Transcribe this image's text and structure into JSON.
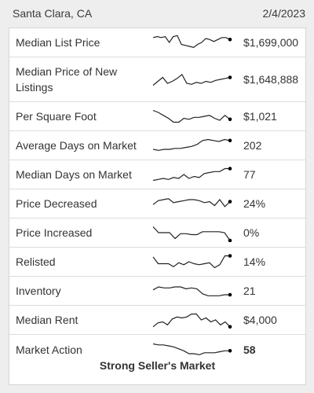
{
  "header": {
    "location": "Santa Clara, CA",
    "date": "2/4/2023"
  },
  "rows": [
    {
      "label": "Median List Price",
      "value": "$1,699,000",
      "spark": [
        3,
        2,
        3,
        2,
        8,
        2,
        1,
        10,
        11,
        12,
        13,
        10,
        8,
        4,
        5,
        7,
        5,
        3,
        3,
        5
      ]
    },
    {
      "label": "Median Price of New Listings",
      "value": "$1,648,888",
      "spark": [
        14,
        10,
        6,
        12,
        10,
        7,
        3,
        12,
        13,
        11,
        12,
        10,
        11,
        9,
        8,
        7,
        6
      ]
    },
    {
      "label": "Per Square Foot",
      "value": "$1,021",
      "spark": [
        2,
        4,
        7,
        10,
        14,
        14,
        10,
        11,
        9,
        9,
        8,
        7,
        10,
        12,
        7,
        11
      ]
    },
    {
      "label": "Average Days on Market",
      "value": "202",
      "spark": [
        12,
        13,
        12,
        12,
        11,
        11,
        10,
        9,
        7,
        3,
        2,
        3,
        4,
        2,
        3
      ]
    },
    {
      "label": "Median Days on Market",
      "value": "77",
      "spark": [
        14,
        13,
        12,
        13,
        11,
        12,
        8,
        12,
        10,
        11,
        7,
        6,
        5,
        5,
        2,
        2
      ]
    },
    {
      "label": "Price Decreased",
      "value": "24%",
      "spark": [
        9,
        5,
        4,
        3,
        7,
        6,
        5,
        4,
        4,
        5,
        7,
        6,
        10,
        4,
        11,
        6
      ]
    },
    {
      "label": "Price Increased",
      "value": "0%",
      "spark": [
        2,
        8,
        8,
        8,
        14,
        9,
        9,
        10,
        10,
        7,
        7,
        7,
        7,
        8,
        16
      ]
    },
    {
      "label": "Relisted",
      "value": "14%",
      "spark": [
        3,
        10,
        10,
        10,
        13,
        9,
        11,
        8,
        10,
        11,
        10,
        9,
        14,
        11,
        2,
        2
      ]
    },
    {
      "label": "Inventory",
      "value": "21",
      "spark": [
        7,
        4,
        5,
        5,
        4,
        4,
        6,
        5,
        6,
        11,
        13,
        13,
        13,
        12,
        12
      ]
    },
    {
      "label": "Median Rent",
      "value": "$4,000",
      "spark": [
        15,
        11,
        10,
        13,
        7,
        5,
        6,
        5,
        2,
        2,
        8,
        6,
        10,
        8,
        13,
        10,
        15
      ]
    },
    {
      "label": "Market Action",
      "value": "58",
      "spark": [
        2,
        3,
        3,
        4,
        5,
        7,
        9,
        12,
        12,
        13,
        11,
        11,
        11,
        10,
        9,
        9
      ]
    }
  ],
  "footer": {
    "status": "Strong Seller's Market"
  },
  "colors": {
    "line": "#222222",
    "dot": "#000000"
  }
}
